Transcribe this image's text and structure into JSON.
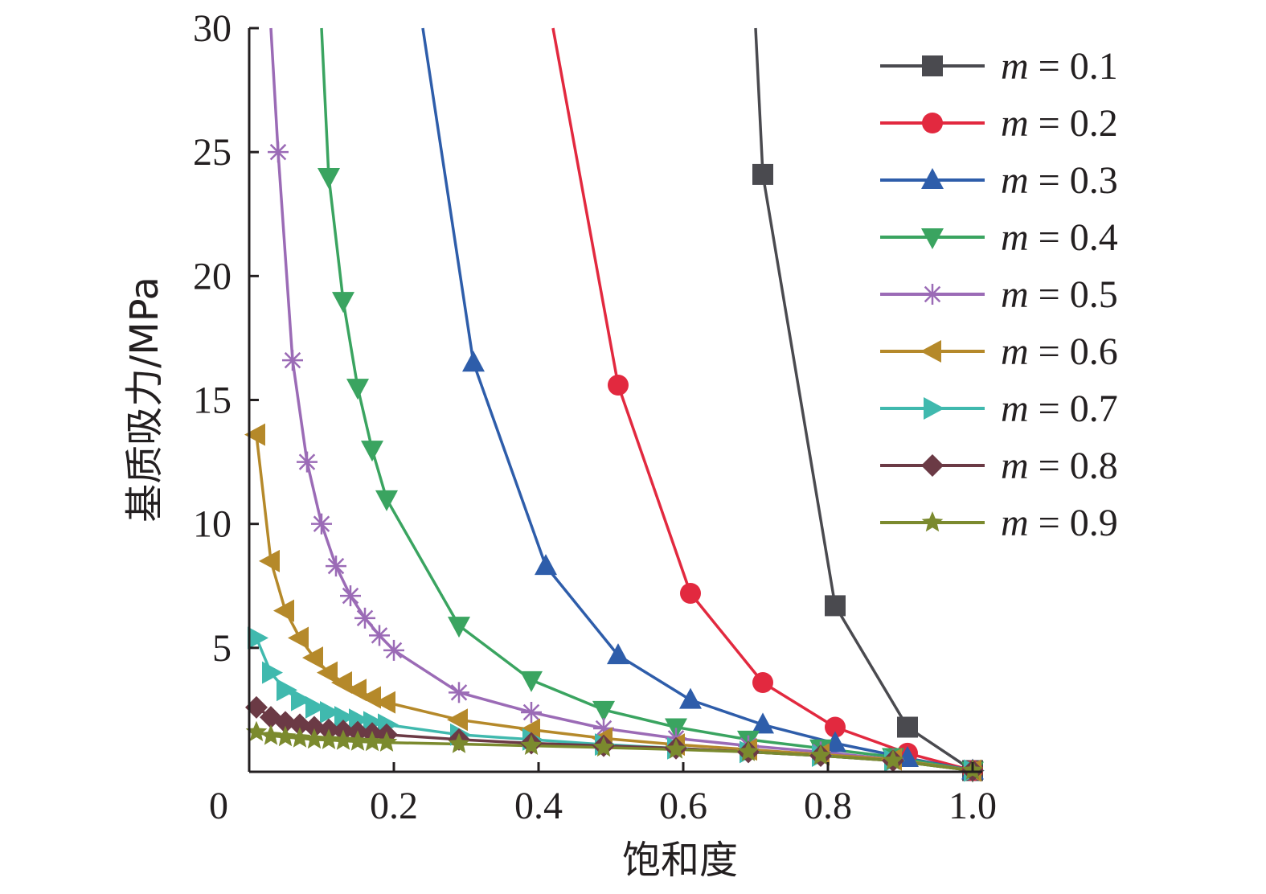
{
  "chart_data": {
    "type": "line",
    "xlabel": "饱和度",
    "ylabel": "基质吸力/MPa",
    "xlim": [
      0,
      1.0
    ],
    "ylim": [
      0,
      30
    ],
    "x_ticks": [
      {
        "value": 0,
        "label": "0"
      },
      {
        "value": 0.2,
        "label": "0.2"
      },
      {
        "value": 0.4,
        "label": "0.4"
      },
      {
        "value": 0.6,
        "label": "0.6"
      },
      {
        "value": 0.8,
        "label": "0.8"
      },
      {
        "value": 1.0,
        "label": "1.0"
      }
    ],
    "y_ticks": [
      {
        "value": 5,
        "label": "5"
      },
      {
        "value": 10,
        "label": "10"
      },
      {
        "value": 15,
        "label": "15"
      },
      {
        "value": 20,
        "label": "20"
      },
      {
        "value": 25,
        "label": "25"
      },
      {
        "value": 30,
        "label": "30"
      }
    ],
    "legend_position": "top-right",
    "grid": false,
    "series": [
      {
        "name": "m = 0.1",
        "legend_var": "m",
        "legend_val": " = 0.1",
        "color": "#4a4a4f",
        "marker": "square",
        "line_points": [
          [
            0.7,
            30
          ],
          [
            0.71,
            24.1
          ],
          [
            0.81,
            6.7
          ],
          [
            0.91,
            1.8
          ],
          [
            1.0,
            0.05
          ]
        ],
        "markers": [
          [
            0.71,
            24.1
          ],
          [
            0.81,
            6.7
          ],
          [
            0.91,
            1.8
          ],
          [
            1.0,
            0.05
          ]
        ]
      },
      {
        "name": "m = 0.2",
        "legend_var": "m",
        "legend_val": " = 0.2",
        "color": "#e2293f",
        "marker": "circle",
        "line_points": [
          [
            0.42,
            30
          ],
          [
            0.51,
            15.6
          ],
          [
            0.61,
            7.2
          ],
          [
            0.71,
            3.6
          ],
          [
            0.81,
            1.8
          ],
          [
            0.91,
            0.75
          ],
          [
            1.0,
            0.05
          ]
        ],
        "markers": [
          [
            0.51,
            15.6
          ],
          [
            0.61,
            7.2
          ],
          [
            0.71,
            3.6
          ],
          [
            0.81,
            1.8
          ],
          [
            0.91,
            0.75
          ],
          [
            1.0,
            0.05
          ]
        ]
      },
      {
        "name": "m = 0.3",
        "legend_var": "m",
        "legend_val": " = 0.3",
        "color": "#2e5daa",
        "marker": "triangle-up",
        "line_points": [
          [
            0.24,
            30
          ],
          [
            0.31,
            16.5
          ],
          [
            0.41,
            8.3
          ],
          [
            0.51,
            4.7
          ],
          [
            0.61,
            2.9
          ],
          [
            0.71,
            1.9
          ],
          [
            0.81,
            1.15
          ],
          [
            0.91,
            0.55
          ],
          [
            1.0,
            0.05
          ]
        ],
        "markers": [
          [
            0.31,
            16.5
          ],
          [
            0.41,
            8.3
          ],
          [
            0.51,
            4.7
          ],
          [
            0.61,
            2.9
          ],
          [
            0.71,
            1.9
          ],
          [
            0.81,
            1.15
          ],
          [
            0.91,
            0.55
          ],
          [
            1.0,
            0.05
          ]
        ]
      },
      {
        "name": "m = 0.4",
        "legend_var": "m",
        "legend_val": " = 0.4",
        "color": "#3aa460",
        "marker": "triangle-down",
        "line_points": [
          [
            0.1,
            30
          ],
          [
            0.11,
            24.0
          ],
          [
            0.13,
            19.0
          ],
          [
            0.15,
            15.5
          ],
          [
            0.17,
            13.0
          ],
          [
            0.19,
            11.0
          ],
          [
            0.29,
            5.9
          ],
          [
            0.39,
            3.7
          ],
          [
            0.49,
            2.5
          ],
          [
            0.59,
            1.8
          ],
          [
            0.69,
            1.3
          ],
          [
            0.79,
            0.95
          ],
          [
            0.89,
            0.6
          ],
          [
            1.0,
            0.05
          ]
        ],
        "markers": [
          [
            0.11,
            24.0
          ],
          [
            0.13,
            19.0
          ],
          [
            0.15,
            15.5
          ],
          [
            0.17,
            13.0
          ],
          [
            0.19,
            11.0
          ],
          [
            0.29,
            5.9
          ],
          [
            0.39,
            3.7
          ],
          [
            0.49,
            2.5
          ],
          [
            0.59,
            1.8
          ],
          [
            0.69,
            1.3
          ],
          [
            0.79,
            0.95
          ],
          [
            0.89,
            0.6
          ],
          [
            1.0,
            0.05
          ]
        ]
      },
      {
        "name": "m = 0.5",
        "legend_var": "m",
        "legend_val": " = 0.5",
        "color": "#9b6bb6",
        "marker": "asterisk",
        "line_points": [
          [
            0.03,
            30
          ],
          [
            0.04,
            25.0
          ],
          [
            0.06,
            16.6
          ],
          [
            0.08,
            12.5
          ],
          [
            0.1,
            10.0
          ],
          [
            0.12,
            8.3
          ],
          [
            0.14,
            7.1
          ],
          [
            0.16,
            6.2
          ],
          [
            0.18,
            5.5
          ],
          [
            0.2,
            4.9
          ],
          [
            0.29,
            3.2
          ],
          [
            0.39,
            2.4
          ],
          [
            0.49,
            1.75
          ],
          [
            0.59,
            1.35
          ],
          [
            0.69,
            1.05
          ],
          [
            0.79,
            0.8
          ],
          [
            0.89,
            0.5
          ],
          [
            1.0,
            0.05
          ]
        ],
        "markers": [
          [
            0.04,
            25.0
          ],
          [
            0.06,
            16.6
          ],
          [
            0.08,
            12.5
          ],
          [
            0.1,
            10.0
          ],
          [
            0.12,
            8.3
          ],
          [
            0.14,
            7.1
          ],
          [
            0.16,
            6.2
          ],
          [
            0.18,
            5.5
          ],
          [
            0.2,
            4.9
          ],
          [
            0.29,
            3.2
          ],
          [
            0.39,
            2.4
          ],
          [
            0.49,
            1.75
          ],
          [
            0.59,
            1.35
          ],
          [
            0.69,
            1.05
          ],
          [
            0.79,
            0.8
          ],
          [
            0.89,
            0.5
          ],
          [
            1.0,
            0.05
          ]
        ]
      },
      {
        "name": "m = 0.6",
        "legend_var": "m",
        "legend_val": " = 0.6",
        "color": "#b5892a",
        "marker": "triangle-left",
        "line_points": [
          [
            0.01,
            13.6
          ],
          [
            0.03,
            8.5
          ],
          [
            0.05,
            6.5
          ],
          [
            0.07,
            5.4
          ],
          [
            0.09,
            4.6
          ],
          [
            0.11,
            4.0
          ],
          [
            0.13,
            3.6
          ],
          [
            0.15,
            3.3
          ],
          [
            0.17,
            3.0
          ],
          [
            0.19,
            2.8
          ],
          [
            0.29,
            2.1
          ],
          [
            0.39,
            1.7
          ],
          [
            0.49,
            1.35
          ],
          [
            0.59,
            1.1
          ],
          [
            0.69,
            0.9
          ],
          [
            0.79,
            0.7
          ],
          [
            0.89,
            0.5
          ],
          [
            1.0,
            0.05
          ]
        ],
        "markers": [
          [
            0.01,
            13.6
          ],
          [
            0.03,
            8.5
          ],
          [
            0.05,
            6.5
          ],
          [
            0.07,
            5.4
          ],
          [
            0.09,
            4.6
          ],
          [
            0.11,
            4.0
          ],
          [
            0.13,
            3.6
          ],
          [
            0.15,
            3.3
          ],
          [
            0.17,
            3.0
          ],
          [
            0.19,
            2.8
          ],
          [
            0.29,
            2.1
          ],
          [
            0.39,
            1.7
          ],
          [
            0.49,
            1.35
          ],
          [
            0.59,
            1.1
          ],
          [
            0.69,
            0.9
          ],
          [
            0.79,
            0.7
          ],
          [
            0.89,
            0.5
          ],
          [
            1.0,
            0.05
          ]
        ]
      },
      {
        "name": "m = 0.7",
        "legend_var": "m",
        "legend_val": " = 0.7",
        "color": "#40b9ae",
        "marker": "triangle-right",
        "line_points": [
          [
            0.01,
            5.4
          ],
          [
            0.03,
            4.0
          ],
          [
            0.05,
            3.3
          ],
          [
            0.07,
            2.9
          ],
          [
            0.09,
            2.6
          ],
          [
            0.11,
            2.4
          ],
          [
            0.13,
            2.2
          ],
          [
            0.15,
            2.1
          ],
          [
            0.17,
            2.0
          ],
          [
            0.19,
            1.9
          ],
          [
            0.29,
            1.5
          ],
          [
            0.39,
            1.3
          ],
          [
            0.49,
            1.1
          ],
          [
            0.59,
            0.95
          ],
          [
            0.69,
            0.8
          ],
          [
            0.79,
            0.65
          ],
          [
            0.89,
            0.45
          ],
          [
            1.0,
            0.05
          ]
        ],
        "markers": [
          [
            0.01,
            5.4
          ],
          [
            0.03,
            4.0
          ],
          [
            0.05,
            3.3
          ],
          [
            0.07,
            2.9
          ],
          [
            0.09,
            2.6
          ],
          [
            0.11,
            2.4
          ],
          [
            0.13,
            2.2
          ],
          [
            0.15,
            2.1
          ],
          [
            0.17,
            2.0
          ],
          [
            0.19,
            1.9
          ],
          [
            0.29,
            1.5
          ],
          [
            0.39,
            1.3
          ],
          [
            0.49,
            1.1
          ],
          [
            0.59,
            0.95
          ],
          [
            0.69,
            0.8
          ],
          [
            0.79,
            0.65
          ],
          [
            0.89,
            0.45
          ],
          [
            1.0,
            0.05
          ]
        ]
      },
      {
        "name": "m = 0.8",
        "legend_var": "m",
        "legend_val": " = 0.8",
        "color": "#6b3a45",
        "marker": "diamond",
        "line_points": [
          [
            0.01,
            2.6
          ],
          [
            0.03,
            2.2
          ],
          [
            0.05,
            2.0
          ],
          [
            0.07,
            1.9
          ],
          [
            0.09,
            1.8
          ],
          [
            0.11,
            1.7
          ],
          [
            0.13,
            1.65
          ],
          [
            0.15,
            1.6
          ],
          [
            0.17,
            1.55
          ],
          [
            0.19,
            1.5
          ],
          [
            0.29,
            1.3
          ],
          [
            0.39,
            1.15
          ],
          [
            0.49,
            1.05
          ],
          [
            0.59,
            0.95
          ],
          [
            0.69,
            0.8
          ],
          [
            0.79,
            0.65
          ],
          [
            0.89,
            0.45
          ],
          [
            1.0,
            0.05
          ]
        ],
        "markers": [
          [
            0.01,
            2.6
          ],
          [
            0.03,
            2.2
          ],
          [
            0.05,
            2.0
          ],
          [
            0.07,
            1.9
          ],
          [
            0.09,
            1.8
          ],
          [
            0.11,
            1.7
          ],
          [
            0.13,
            1.65
          ],
          [
            0.15,
            1.6
          ],
          [
            0.17,
            1.55
          ],
          [
            0.19,
            1.5
          ],
          [
            0.29,
            1.3
          ],
          [
            0.39,
            1.15
          ],
          [
            0.49,
            1.05
          ],
          [
            0.59,
            0.95
          ],
          [
            0.69,
            0.8
          ],
          [
            0.79,
            0.65
          ],
          [
            0.89,
            0.45
          ],
          [
            1.0,
            0.05
          ]
        ]
      },
      {
        "name": "m = 0.9",
        "legend_var": "m",
        "legend_val": " = 0.9",
        "color": "#7b8a2e",
        "marker": "star",
        "line_points": [
          [
            0.01,
            1.6
          ],
          [
            0.03,
            1.45
          ],
          [
            0.05,
            1.4
          ],
          [
            0.07,
            1.35
          ],
          [
            0.09,
            1.3
          ],
          [
            0.11,
            1.28
          ],
          [
            0.13,
            1.25
          ],
          [
            0.15,
            1.22
          ],
          [
            0.17,
            1.2
          ],
          [
            0.19,
            1.18
          ],
          [
            0.29,
            1.12
          ],
          [
            0.39,
            1.05
          ],
          [
            0.49,
            0.98
          ],
          [
            0.59,
            0.9
          ],
          [
            0.69,
            0.8
          ],
          [
            0.79,
            0.65
          ],
          [
            0.89,
            0.45
          ],
          [
            1.0,
            0.05
          ]
        ],
        "markers": [
          [
            0.01,
            1.6
          ],
          [
            0.03,
            1.45
          ],
          [
            0.05,
            1.4
          ],
          [
            0.07,
            1.35
          ],
          [
            0.09,
            1.3
          ],
          [
            0.11,
            1.28
          ],
          [
            0.13,
            1.25
          ],
          [
            0.15,
            1.22
          ],
          [
            0.17,
            1.2
          ],
          [
            0.19,
            1.18
          ],
          [
            0.29,
            1.12
          ],
          [
            0.39,
            1.05
          ],
          [
            0.49,
            0.98
          ],
          [
            0.59,
            0.9
          ],
          [
            0.69,
            0.8
          ],
          [
            0.79,
            0.65
          ],
          [
            0.89,
            0.45
          ],
          [
            1.0,
            0.05
          ]
        ]
      }
    ]
  }
}
